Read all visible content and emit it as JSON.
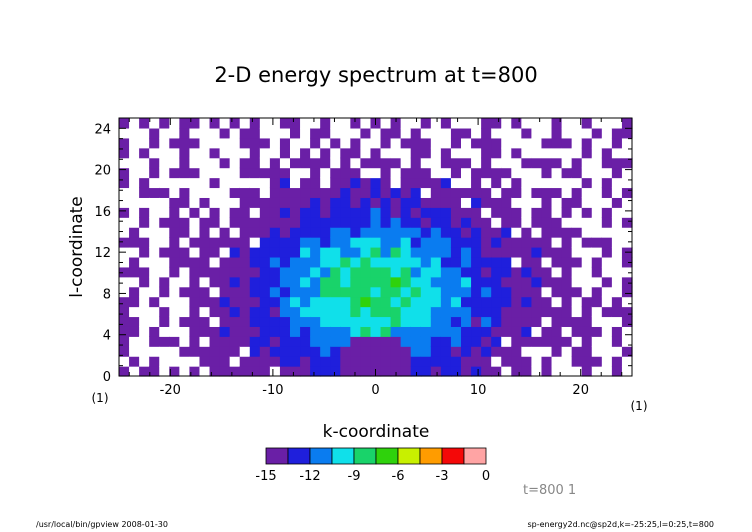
{
  "chart_data": {
    "type": "heatmap",
    "title": "2-D energy spectrum at t=800",
    "xlabel": "k-coordinate",
    "ylabel": "l-coordinate",
    "xlim": [
      -25,
      25
    ],
    "ylim": [
      0,
      25
    ],
    "x_ticks": [
      -20,
      -10,
      0,
      10,
      20
    ],
    "y_ticks": [
      0,
      4,
      8,
      12,
      16,
      20,
      24
    ],
    "x_axis_note": "(1)",
    "y_axis_note": "(1)",
    "grid": false,
    "colorbar": {
      "tick_labels": [
        "-15",
        "-12",
        "-9",
        "-6",
        "-3",
        "0"
      ],
      "levels": [
        -15,
        -13.5,
        -12,
        -10.5,
        -9,
        -7.5,
        -6,
        -4.5,
        -3,
        -1.5,
        0
      ],
      "colors": [
        "#6a1fa6",
        "#1f1fdc",
        "#0a7cf0",
        "#10e0ea",
        "#19d36a",
        "#2fd20c",
        "#c8f000",
        "#ff9c00",
        "#f40808",
        "#ffa4a4"
      ],
      "placement": "bottom"
    },
    "annotation": "t=800 1"
  },
  "footer": {
    "left": "/usr/local/bin/gpview  2008-01-30",
    "right": "sp-energy2d.nc@sp2d,k=-25:25,l=0:25,t=800"
  }
}
